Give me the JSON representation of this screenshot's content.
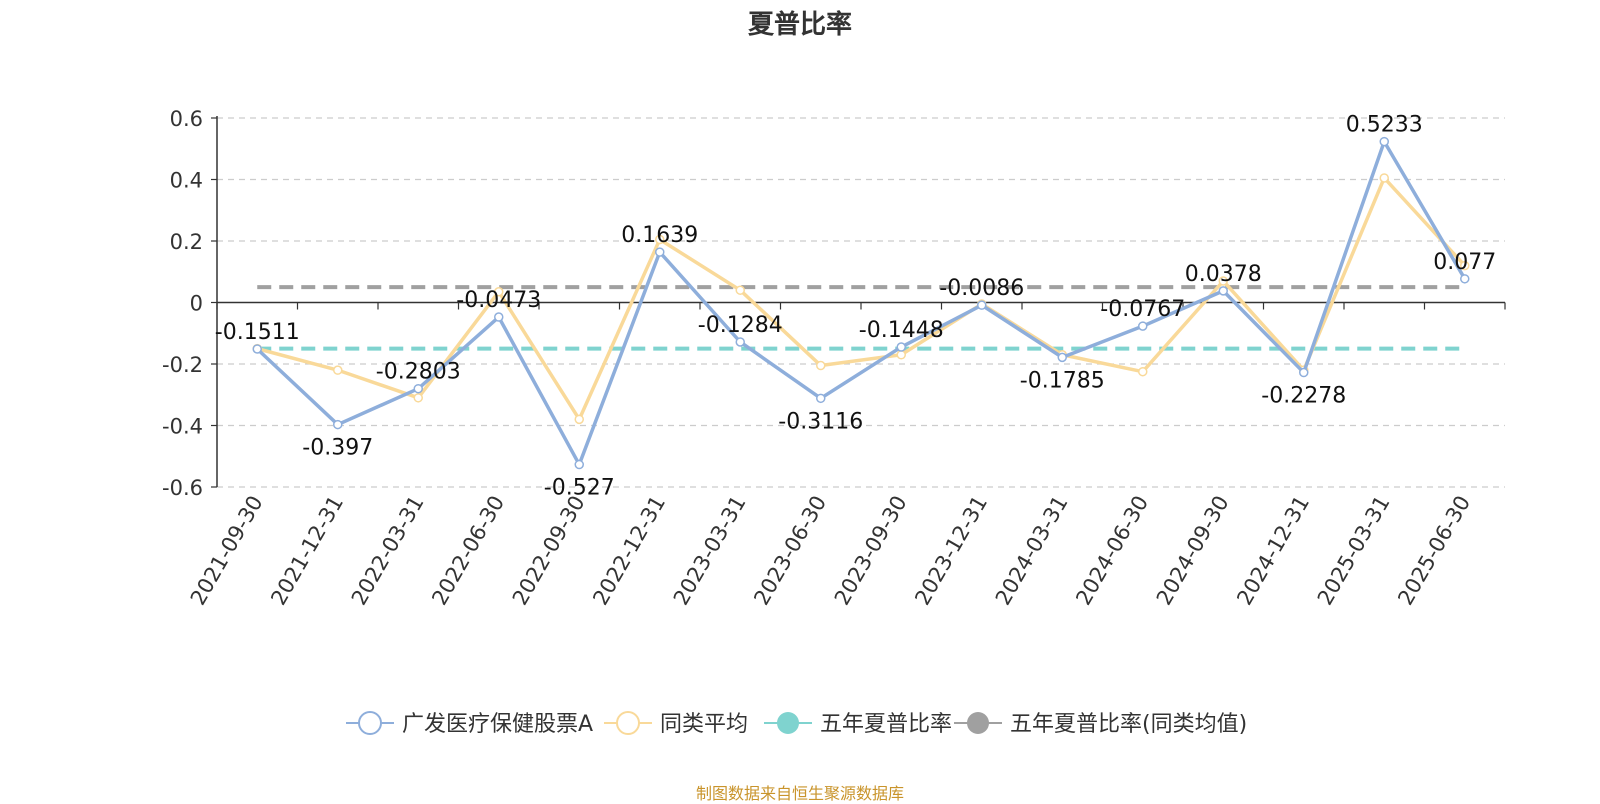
{
  "chart_data": {
    "type": "line",
    "title": "夏普比率",
    "x": [
      "2021-09-30",
      "2021-12-31",
      "2022-03-31",
      "2022-06-30",
      "2022-09-30",
      "2022-12-31",
      "2023-03-31",
      "2023-06-30",
      "2023-09-30",
      "2023-12-31",
      "2024-03-31",
      "2024-06-30",
      "2024-09-30",
      "2024-12-31",
      "2025-03-31",
      "2025-06-30"
    ],
    "ylim": [
      -0.6,
      0.6
    ],
    "yticks": [
      -0.6,
      -0.4,
      -0.2,
      0,
      0.2,
      0.4,
      0.6
    ],
    "grid": true,
    "legend_position": "bottom",
    "series": [
      {
        "name": "广发医疗保健股票A",
        "color": "#8eaedb",
        "values": [
          -0.1511,
          -0.397,
          -0.2803,
          -0.0473,
          -0.527,
          0.1639,
          -0.1284,
          -0.3116,
          -0.1448,
          -0.0086,
          -0.1785,
          -0.0767,
          0.0378,
          -0.2278,
          0.5233,
          0.077
        ],
        "labels": [
          "-0.1511",
          "-0.397",
          "-0.2803",
          "-0.0473",
          "-0.527",
          "0.1639",
          "-0.1284",
          "-0.3116",
          "-0.1448",
          "-0.0086",
          "-0.1785",
          "-0.0767",
          "0.0378",
          "-0.2278",
          "0.5233",
          "0.077"
        ]
      },
      {
        "name": "同类平均",
        "color": "#f9d999",
        "values": [
          -0.15,
          -0.22,
          -0.31,
          0.035,
          -0.38,
          0.205,
          0.04,
          -0.205,
          -0.17,
          -0.005,
          -0.17,
          -0.225,
          0.07,
          -0.22,
          0.405,
          0.12
        ]
      },
      {
        "name": "五年夏普比率",
        "color": "#7fd3cf",
        "type": "reference",
        "value": -0.15
      },
      {
        "name": "五年夏普比率(同类均值)",
        "color": "#a0a0a0",
        "type": "reference",
        "value": 0.05
      }
    ]
  },
  "source_note": "制图数据来自恒生聚源数据库"
}
